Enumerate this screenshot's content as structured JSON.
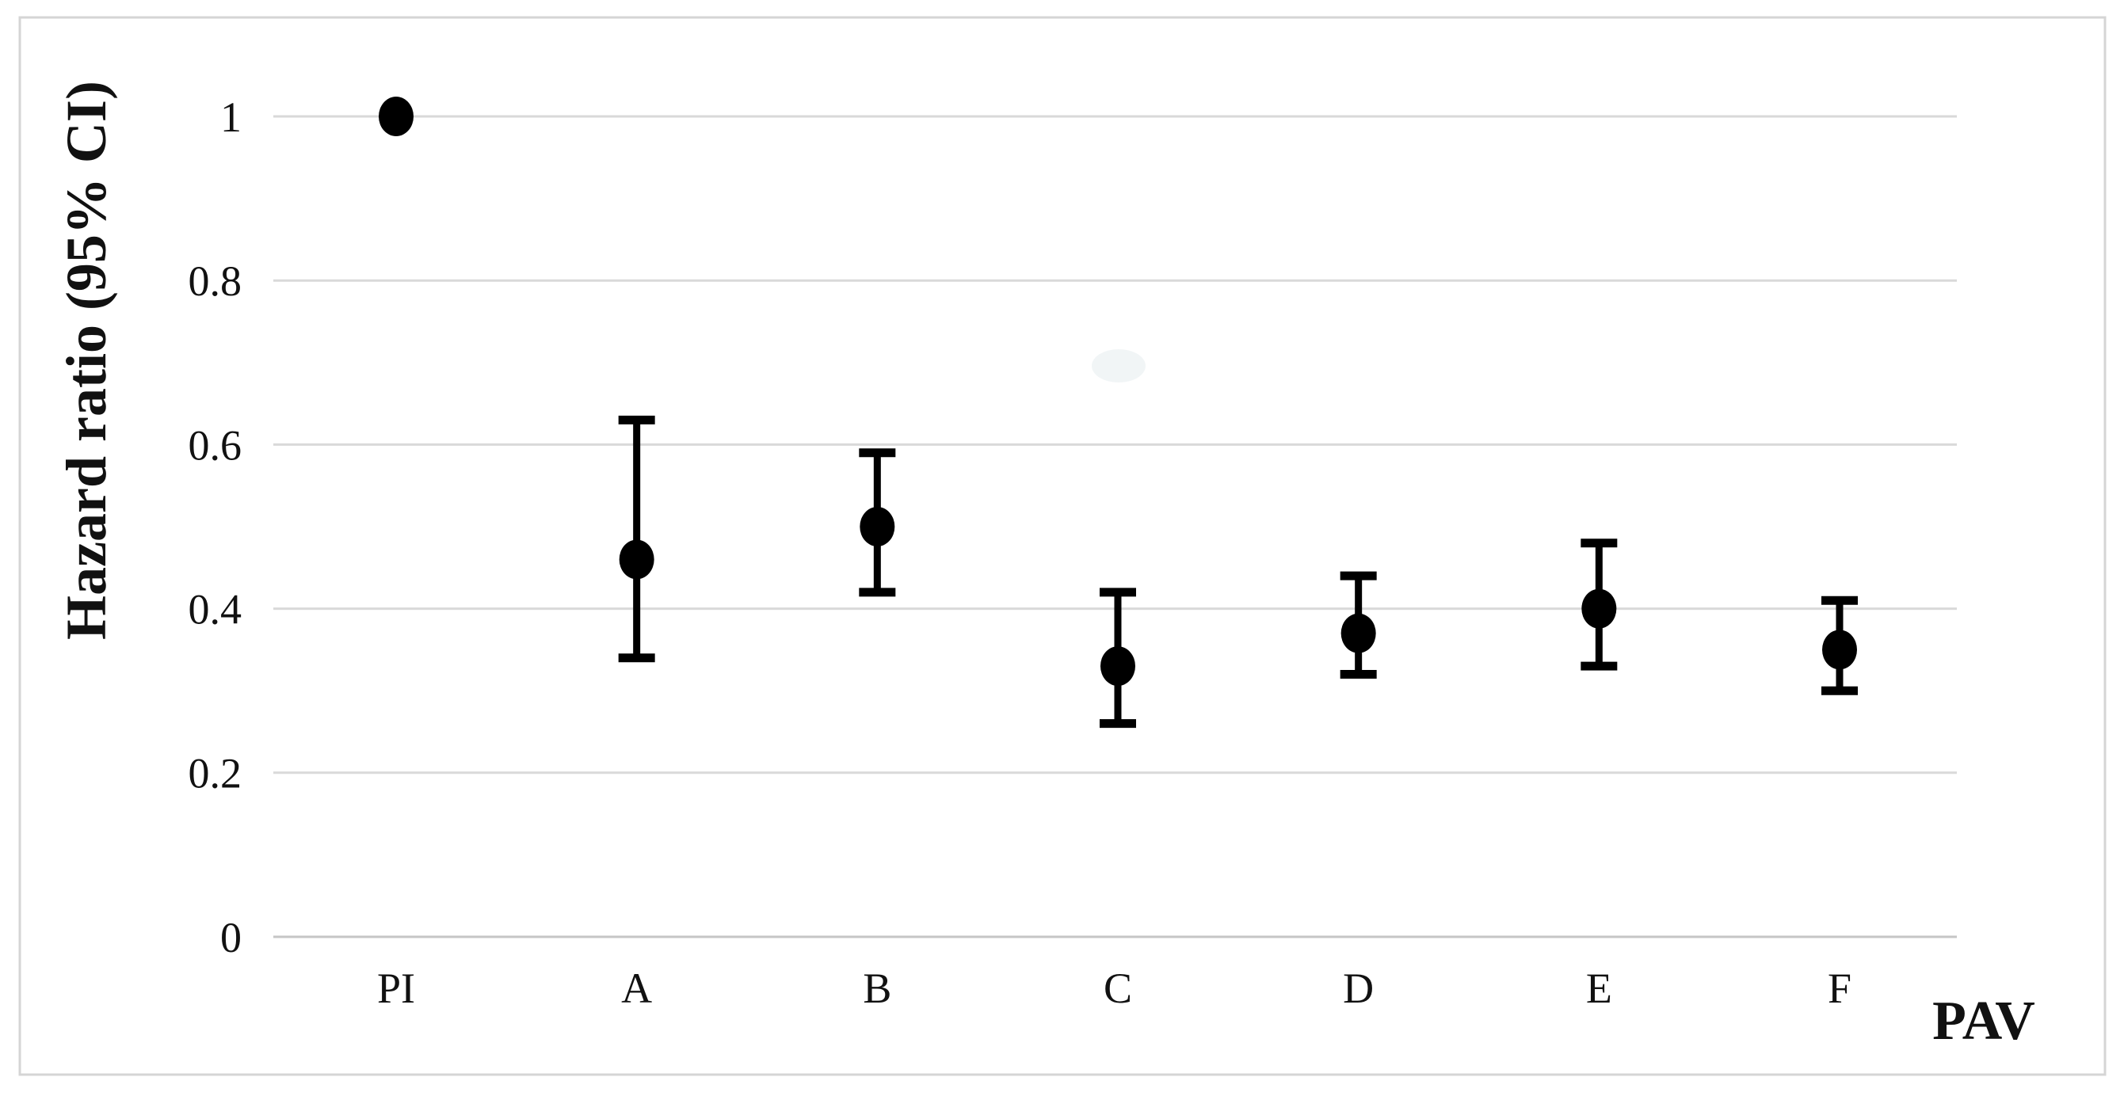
{
  "chart_data": {
    "type": "scatter",
    "variant": "forest-plot-with-95ci-error-bars",
    "title": "",
    "ylabel": "Hazard ratio (95% CI)",
    "xlabel": "PAV",
    "categories": [
      "PI",
      "A",
      "B",
      "C",
      "D",
      "E",
      "F"
    ],
    "series": [
      {
        "name": "Hazard ratio (95% CI)",
        "values": [
          1.0,
          0.46,
          0.5,
          0.33,
          0.37,
          0.4,
          0.35
        ],
        "ci_low": [
          null,
          0.34,
          0.42,
          0.26,
          0.32,
          0.33,
          0.3
        ],
        "ci_high": [
          null,
          0.63,
          0.59,
          0.42,
          0.44,
          0.48,
          0.41
        ]
      }
    ],
    "ylim": [
      0,
      1
    ],
    "yticks": [
      0,
      0.2,
      0.4,
      0.6,
      0.8,
      1
    ],
    "ytick_labels": [
      "0",
      "0.2",
      "0.4",
      "0.6",
      "0.8",
      "1"
    ],
    "grid": true,
    "legend": false,
    "marker_color": "#000000",
    "grid_color": "#d9d9d9",
    "axis_line_color": "#c6c6c6",
    "frame_color": "#d5d5d5",
    "text_color": "#111111",
    "watermark_color": "#a8bfc9"
  }
}
